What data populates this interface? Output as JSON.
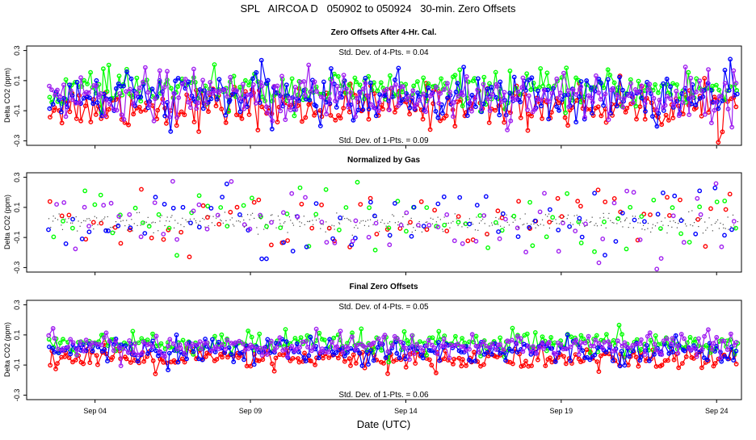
{
  "figure_title": "SPL   AIRCOA D   050902 to 050924   30-min. Zero Offsets",
  "xlabel": "Date (UTC)",
  "x_ticks": [
    "Sep 04",
    "Sep 09",
    "Sep 14",
    "Sep 19",
    "Sep 24"
  ],
  "y_ticks": [
    "0.3",
    "0.1",
    "-0.1",
    "-0.3"
  ],
  "ylabel": "Delta CO2 (ppm)",
  "colors": {
    "red": "#ff0000",
    "green": "#00ff00",
    "blue": "#0000ff",
    "purple": "#a020f0",
    "black": "#000000"
  },
  "chart_data": [
    {
      "type": "scatter",
      "title": "Zero Offsets After 4-Hr. Cal.",
      "ylabel": "Delta CO2 (ppm)",
      "xlabel": "",
      "ylim": [
        -0.33,
        0.33
      ],
      "xlim_days": [
        1.8,
        24.8
      ],
      "annotations": [
        "Std. Dev. of 4-Pts. = 0.04",
        "Std. Dev. of 1-Pts. = 0.09"
      ],
      "series": [
        {
          "name": "red",
          "mean": -0.07,
          "sd": 0.07,
          "connected": true
        },
        {
          "name": "green",
          "mean": 0.04,
          "sd": 0.06,
          "connected": true
        },
        {
          "name": "blue",
          "mean": -0.01,
          "sd": 0.08,
          "connected": true
        },
        {
          "name": "purple",
          "mean": 0.0,
          "sd": 0.08,
          "connected": true
        }
      ],
      "x_range_days": [
        2.5,
        24.7
      ],
      "points_per_series": 240
    },
    {
      "type": "scatter",
      "title": "Normalized by Gas",
      "ylabel": "Delta CO2 (ppm)",
      "xlabel": "",
      "ylim": [
        -0.33,
        0.33
      ],
      "xlim_days": [
        1.8,
        24.8
      ],
      "annotations": [],
      "series": [
        {
          "name": "red",
          "mean": 0.0,
          "sd": 0.12,
          "connected": false
        },
        {
          "name": "green",
          "mean": 0.0,
          "sd": 0.12,
          "connected": false
        },
        {
          "name": "blue",
          "mean": 0.0,
          "sd": 0.12,
          "connected": false
        },
        {
          "name": "purple",
          "mean": 0.0,
          "sd": 0.12,
          "connected": false
        },
        {
          "name": "black",
          "mean": 0.0,
          "sd": 0.03,
          "connected": false
        }
      ],
      "x_range_days": [
        2.5,
        24.7
      ],
      "points_per_series": 70
    },
    {
      "type": "scatter",
      "title": "Final Zero Offsets",
      "ylabel": "Delta CO2 (ppm)",
      "xlabel": "Date (UTC)",
      "ylim": [
        -0.33,
        0.33
      ],
      "xlim_days": [
        1.8,
        24.8
      ],
      "annotations": [
        "Std. Dev. of 4-Pts. = 0.05",
        "Std. Dev. of 1-Pts. = 0.06"
      ],
      "series": [
        {
          "name": "red",
          "mean": -0.06,
          "sd": 0.04,
          "connected": true
        },
        {
          "name": "green",
          "mean": 0.04,
          "sd": 0.04,
          "connected": true
        },
        {
          "name": "blue",
          "mean": 0.0,
          "sd": 0.04,
          "connected": true
        },
        {
          "name": "purple",
          "mean": 0.03,
          "sd": 0.04,
          "connected": true
        }
      ],
      "x_range_days": [
        2.5,
        24.7
      ],
      "points_per_series": 240
    }
  ]
}
